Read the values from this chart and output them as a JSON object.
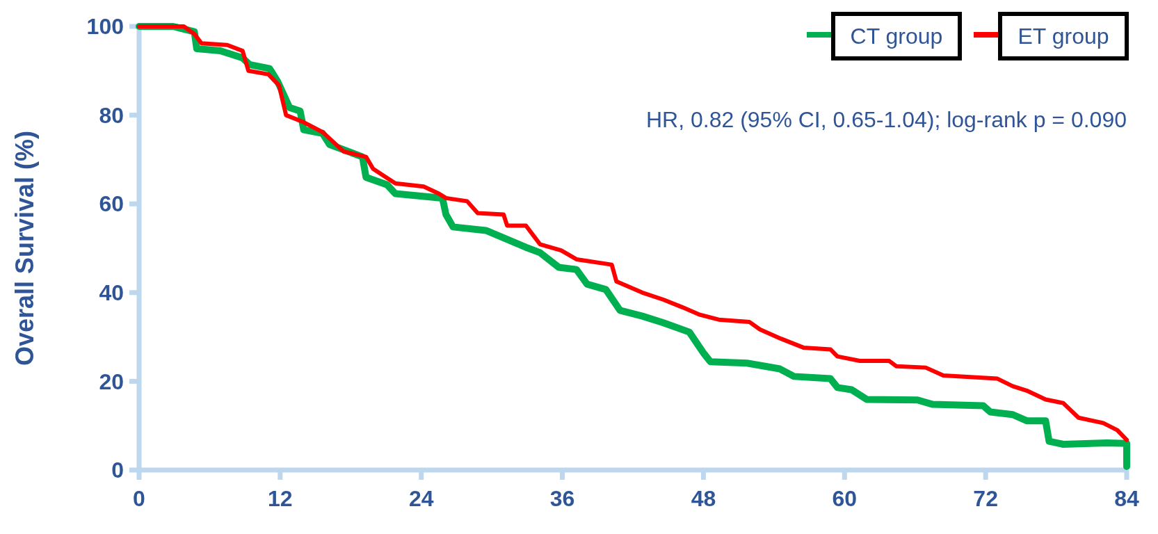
{
  "chart_data": {
    "type": "line",
    "ylabel": "Overall Survival (%)",
    "xlim": [
      0,
      84
    ],
    "ylim": [
      0,
      100
    ],
    "xticks": [
      0,
      12,
      24,
      36,
      48,
      60,
      72,
      84
    ],
    "yticks": [
      0,
      20,
      40,
      60,
      80,
      100
    ],
    "grid": false,
    "legend": "top right",
    "marker": "none",
    "line_style": "solid",
    "annotations": [
      "HR, 0.82 (95% CI, 0.65-1.04); log-rank p = 0.090"
    ],
    "series": [
      {
        "name": "CT group",
        "color": "#00b050",
        "x": [
          0,
          2.9,
          4.7,
          4.9,
          6.9,
          8.8,
          9.4,
          11.1,
          11.8,
          12.8,
          13.7,
          14,
          15.6,
          16.2,
          19,
          19.3,
          21.1,
          21.8,
          25.8,
          26.1,
          26.7,
          29.5,
          32.9,
          34.1,
          35.7,
          37.2,
          38.1,
          39.7,
          40.9,
          42.8,
          44.6,
          46.8,
          48,
          48.6,
          51.7,
          54.5,
          55.7,
          58.8,
          59.4,
          60.6,
          61.9,
          66.2,
          67.5,
          71.8,
          72.4,
          74.3,
          75.5,
          77.1,
          77.4,
          78.6,
          82.3,
          84,
          84
        ],
        "values": [
          100,
          100,
          98.8,
          95,
          94.5,
          92.9,
          91.4,
          90.5,
          87.5,
          81.7,
          80.9,
          76.7,
          75.9,
          73.4,
          70.6,
          66,
          64.3,
          62.3,
          61.3,
          57.6,
          54.8,
          54,
          50.2,
          49,
          45.7,
          45.2,
          41.9,
          40.7,
          36,
          34.7,
          33.2,
          31.1,
          26.4,
          24.4,
          24.1,
          22.8,
          21.1,
          20.6,
          18.6,
          18.1,
          15.9,
          15.8,
          14.8,
          14.5,
          13.1,
          12.5,
          11.1,
          11.1,
          6.5,
          5.8,
          6.1,
          6,
          0.8
        ]
      },
      {
        "name": "ET group",
        "color": "#ff0000",
        "x": [
          0,
          3.8,
          4.7,
          5.3,
          7.5,
          8.8,
          9.3,
          11,
          11.9,
          12.5,
          14,
          15.6,
          17.4,
          19.3,
          19.9,
          21.8,
          24.2,
          25.5,
          26.1,
          27.9,
          28.8,
          31,
          31.3,
          32.9,
          34.1,
          35.9,
          37.2,
          40.2,
          40.6,
          42.8,
          44.6,
          46.2,
          47.7,
          49.3,
          51.9,
          52.8,
          54.6,
          56.5,
          58.8,
          59.4,
          61.3,
          63.8,
          64.4,
          66.9,
          68.4,
          73,
          74.3,
          75.5,
          77.1,
          78.6,
          79.9,
          82,
          83.2,
          84
        ],
        "values": [
          100,
          100,
          98.3,
          96.2,
          95.8,
          94.5,
          90,
          89.2,
          86.7,
          80,
          78.4,
          76.2,
          71.8,
          70.6,
          67.9,
          64.6,
          63.9,
          62.3,
          61.3,
          60.6,
          57.9,
          57.6,
          55.1,
          55.1,
          50.9,
          49.5,
          47.5,
          46.3,
          42.5,
          40,
          38.4,
          36.7,
          35,
          33.9,
          33.4,
          31.7,
          29.6,
          27.6,
          27.2,
          25.6,
          24.6,
          24.6,
          23.4,
          23.1,
          21.3,
          20.6,
          18.9,
          17.9,
          15.9,
          15.1,
          11.8,
          10.6,
          9,
          6.8
        ]
      }
    ]
  }
}
